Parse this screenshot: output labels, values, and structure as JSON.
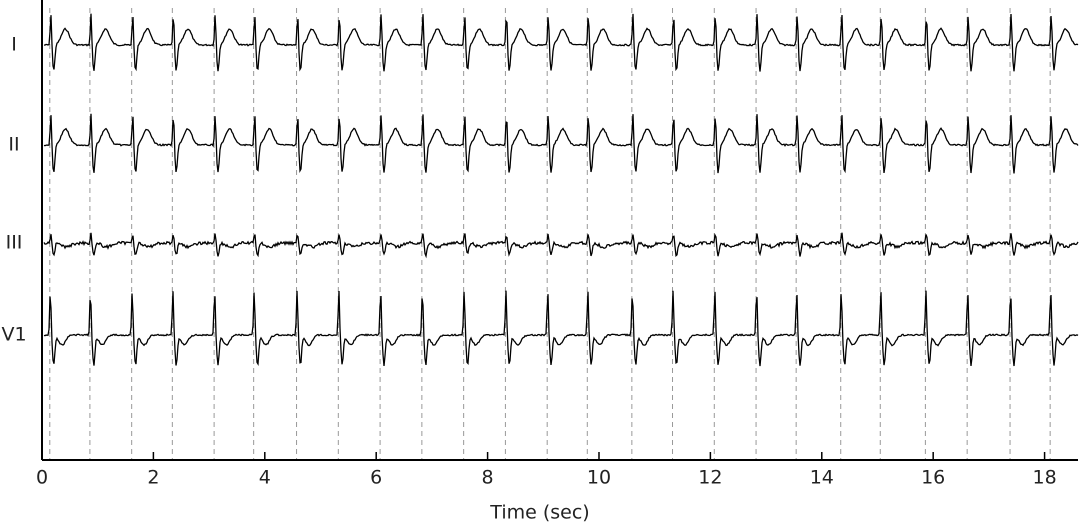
{
  "chart_data": {
    "type": "ecg",
    "xlabel": "Time (sec)",
    "xlim": [
      0,
      18.6
    ],
    "xticks": [
      0,
      2,
      4,
      6,
      8,
      10,
      12,
      14,
      16,
      18
    ],
    "series": [
      {
        "name": "I",
        "color": "#000000"
      },
      {
        "name": "II",
        "color": "#000000"
      },
      {
        "name": "III",
        "color": "#000000"
      },
      {
        "name": "V1",
        "color": "#000000"
      }
    ],
    "beats": [
      0.14,
      0.86,
      1.61,
      2.34,
      3.09,
      3.8,
      4.57,
      5.32,
      6.07,
      6.82,
      7.57,
      8.32,
      9.07,
      9.79,
      10.59,
      11.32,
      12.07,
      12.82,
      13.54,
      14.34,
      15.05,
      15.86,
      16.61,
      17.38,
      18.1
    ]
  }
}
